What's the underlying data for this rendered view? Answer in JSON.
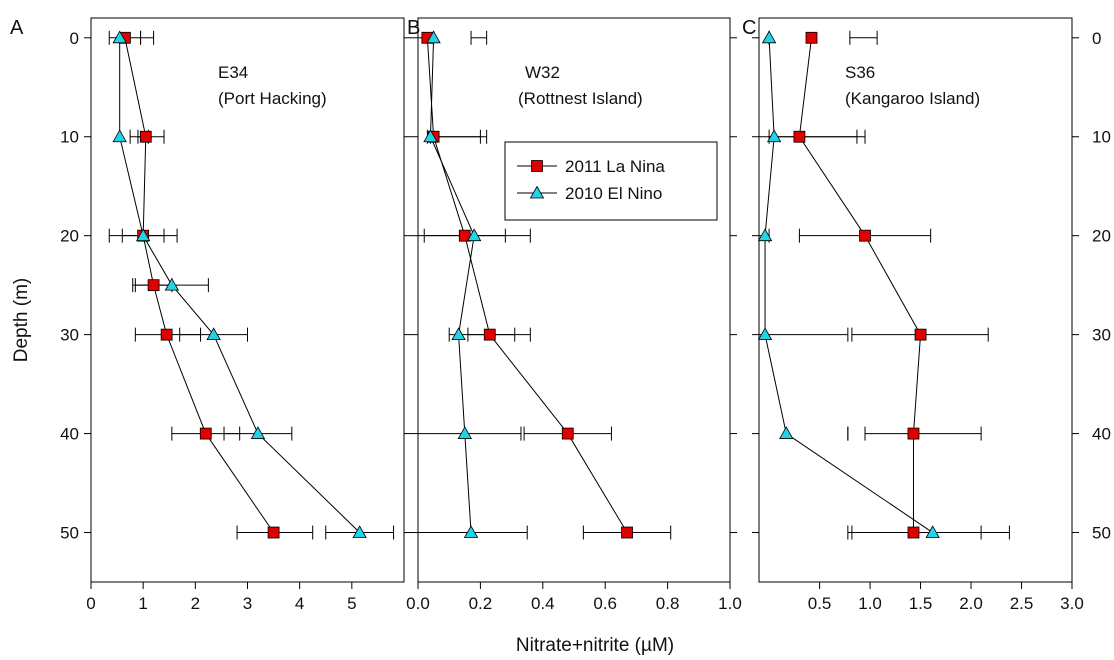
{
  "figure": {
    "ylabel": "Depth (m)",
    "xlabel": "Nitrate+nitrite (µM)"
  },
  "legend": {
    "entries": [
      {
        "label": "2011 La Nina",
        "marker": "square",
        "color": "#e00000"
      },
      {
        "label": "2010 El Nino",
        "marker": "triangle",
        "color": "#22d3e6"
      }
    ],
    "placement": "inside panel B, upper right"
  },
  "colors": {
    "la_nina": "#e00000",
    "el_nino": "#22d3e6",
    "line": "#000000"
  },
  "chart_data": [
    {
      "type": "line",
      "panel": "A",
      "station": "E34",
      "location": "(Port Hacking)",
      "xlabel": "Nitrate+nitrite (µM)",
      "ylabel": "Depth (m)",
      "xlim": [
        0,
        6
      ],
      "ylim": [
        55,
        -2
      ],
      "xticks": [
        0,
        1,
        2,
        3,
        4,
        5
      ],
      "xticklabels": [
        "0",
        "1",
        "2",
        "3",
        "4",
        "5"
      ],
      "yticks": [
        0,
        10,
        20,
        30,
        40,
        50
      ],
      "yticklabels": [
        "0",
        "10",
        "20",
        "30",
        "40",
        "50"
      ],
      "series": [
        {
          "name": "2011 La Nina",
          "depth": [
            0,
            10,
            20,
            25,
            30,
            40,
            50
          ],
          "x": [
            0.65,
            1.05,
            1.0,
            1.2,
            1.45,
            2.2,
            3.5
          ],
          "err_low": [
            0.35,
            0.75,
            0.6,
            0.85,
            0.85,
            1.55,
            2.8
          ],
          "err_high": [
            0.95,
            1.4,
            1.4,
            1.55,
            2.1,
            2.85,
            4.25
          ]
        },
        {
          "name": "2010 El Nino",
          "depth": [
            0,
            10,
            20,
            25,
            30,
            40,
            50
          ],
          "x": [
            0.55,
            0.55,
            1.0,
            1.55,
            2.35,
            3.2,
            5.15
          ],
          "err_low": [
            0.95,
            0.9,
            0.35,
            0.8,
            1.7,
            2.55,
            4.5
          ],
          "err_high": [
            1.2,
            1.1,
            1.65,
            2.25,
            3.0,
            3.85,
            5.8
          ]
        }
      ]
    },
    {
      "type": "line",
      "panel": "B",
      "station": "W32",
      "location": "(Rottnest Island)",
      "xlabel": "Nitrate+nitrite (µM)",
      "ylabel": "Depth (m)",
      "xlim": [
        0,
        1.0
      ],
      "ylim": [
        55,
        -2
      ],
      "xticks": [
        0,
        0.2,
        0.4,
        0.6,
        0.8,
        1.0
      ],
      "xticklabels": [
        "0.0",
        "0.2",
        "0.4",
        "0.6",
        "0.8",
        "1.0"
      ],
      "yticks": [
        0,
        10,
        20,
        30,
        40,
        50
      ],
      "series": [
        {
          "name": "2011 La Nina",
          "depth": [
            0,
            10,
            20,
            30,
            40,
            50
          ],
          "x": [
            0.03,
            0.05,
            0.15,
            0.23,
            0.48,
            0.67
          ],
          "err_low": [
            0.0,
            0.03,
            0.02,
            0.16,
            0.34,
            0.53
          ],
          "err_high": [
            0.05,
            0.2,
            0.28,
            0.31,
            0.62,
            0.81
          ]
        },
        {
          "name": "2010 El Nino",
          "depth": [
            0,
            10,
            20,
            30,
            40,
            50
          ],
          "x": [
            0.05,
            0.04,
            0.18,
            0.13,
            0.15,
            0.17
          ],
          "err_low": [
            0.17,
            0.04,
            0.0,
            0.1,
            0.0,
            0.0
          ],
          "err_high": [
            0.22,
            0.22,
            0.36,
            0.36,
            0.33,
            0.35
          ]
        }
      ]
    },
    {
      "type": "line",
      "panel": "C",
      "station": "S36",
      "location": "(Kangaroo Island)",
      "xlabel": "Nitrate+nitrite (µM)",
      "ylabel": "Depth (m)",
      "xlim": [
        -0.1,
        3.0
      ],
      "ylim": [
        55,
        -2
      ],
      "xticks": [
        0.5,
        1.0,
        1.5,
        2.0,
        2.5,
        3.0
      ],
      "xticklabels": [
        "0.5",
        "1.0",
        "1.5",
        "2.0",
        "2.5",
        "3.0"
      ],
      "yticks": [
        0,
        10,
        20,
        30,
        40,
        50
      ],
      "yticklabels": [
        "0",
        "10",
        "20",
        "30",
        "40",
        "50"
      ],
      "series": [
        {
          "name": "2011 La Nina",
          "depth": [
            0,
            10,
            20,
            30,
            40,
            50
          ],
          "x": [
            0.42,
            0.3,
            0.95,
            1.5,
            1.43,
            1.43
          ],
          "err_low": [
            0.8,
            -0.1,
            0.3,
            0.82,
            0.95,
            0.82
          ],
          "err_high": [
            1.07,
            0.95,
            1.6,
            2.17,
            2.1,
            2.1
          ]
        },
        {
          "name": "2010 El Nino",
          "depth": [
            0,
            10,
            20,
            30,
            40,
            50
          ],
          "x": [
            0.0,
            0.05,
            -0.04,
            -0.04,
            0.17,
            1.62
          ],
          "err_low": [
            0.0,
            0.0,
            -0.1,
            -0.1,
            0.78,
            0.78
          ],
          "err_high": [
            0.0,
            0.87,
            0.0,
            0.78,
            0.78,
            2.38
          ]
        }
      ]
    }
  ]
}
